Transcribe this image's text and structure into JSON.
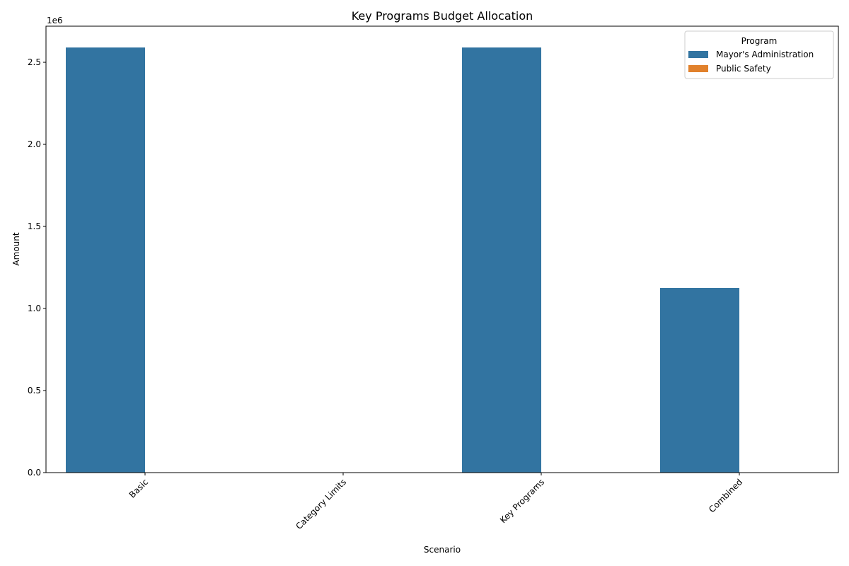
{
  "chart_data": {
    "type": "bar",
    "title": "Key Programs Budget Allocation",
    "xlabel": "Scenario",
    "ylabel": "Amount",
    "y_offset_label": "1e6",
    "categories": [
      "Basic",
      "Category Limits",
      "Key Programs",
      "Combined"
    ],
    "series": [
      {
        "name": "Mayor's Administration",
        "color": "#3274a1",
        "values": [
          2590000,
          0,
          2590000,
          1125000
        ]
      },
      {
        "name": "Public Safety",
        "color": "#e1812c",
        "values": [
          0,
          0,
          0,
          0
        ]
      }
    ],
    "ylim": [
      0,
      2720000
    ],
    "yticks": [
      0,
      500000,
      1000000,
      1500000,
      2000000,
      2500000
    ],
    "ytick_labels": [
      "0.0",
      "0.5",
      "1.0",
      "1.5",
      "2.0",
      "2.5"
    ],
    "legend": {
      "title": "Program",
      "placement": "top-right"
    },
    "grid": false
  }
}
